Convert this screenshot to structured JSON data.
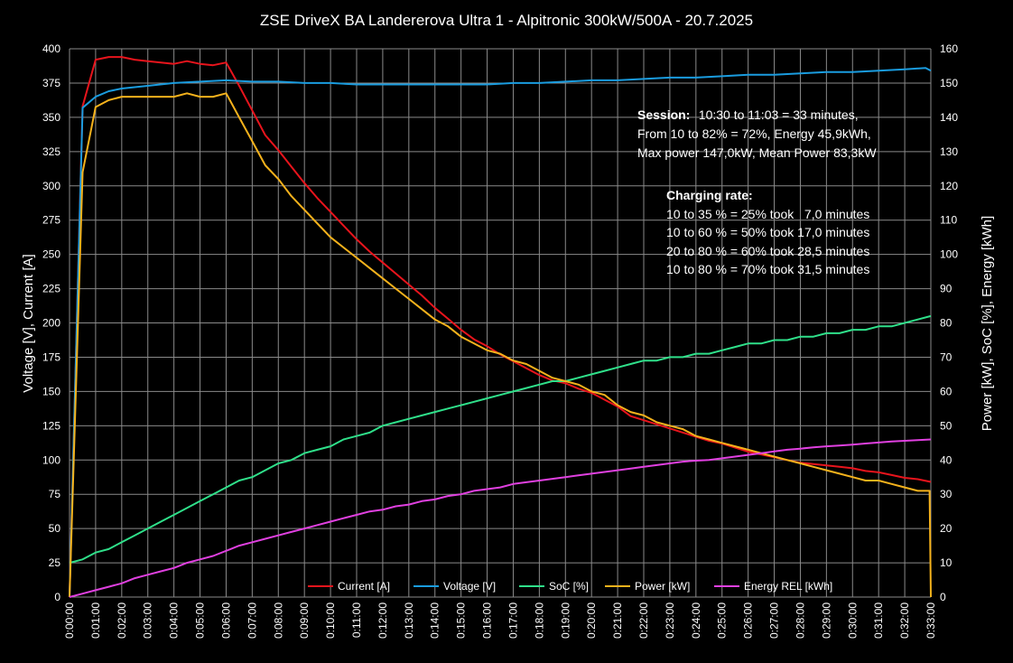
{
  "chart_data": {
    "type": "line",
    "title": "ZSE DriveX BA Landererova Ultra 1 - Alpitronic 300kW/500A - 20.7.2025",
    "ylabel_left": "Voltage [V], Current [A]",
    "ylabel_right": "Power [kW], SoC [%], Energy [kWh]",
    "xlabel": "",
    "y_left_range": [
      0,
      400
    ],
    "y_right_range": [
      0,
      160
    ],
    "y_left_ticks": [
      "0",
      "25",
      "50",
      "75",
      "100",
      "125",
      "150",
      "175",
      "200",
      "225",
      "250",
      "275",
      "300",
      "325",
      "350",
      "375",
      "400"
    ],
    "y_right_ticks": [
      "0",
      "10",
      "20",
      "30",
      "40",
      "50",
      "60",
      "70",
      "80",
      "90",
      "100",
      "110",
      "120",
      "130",
      "140",
      "150",
      "160"
    ],
    "x_range_minutes": [
      0,
      33
    ],
    "x_ticks": [
      "0:00:00",
      "0:01:00",
      "0:02:00",
      "0:03:00",
      "0:04:00",
      "0:05:00",
      "0:06:00",
      "0:07:00",
      "0:08:00",
      "0:09:00",
      "0:10:00",
      "0:11:00",
      "0:12:00",
      "0:13:00",
      "0:14:00",
      "0:15:00",
      "0:16:00",
      "0:17:00",
      "0:18:00",
      "0:19:00",
      "0:20:00",
      "0:21:00",
      "0:22:00",
      "0:23:00",
      "0:24:00",
      "0:25:00",
      "0:26:00",
      "0:27:00",
      "0:28:00",
      "0:29:00",
      "0:30:00",
      "0:31:00",
      "0:32:00",
      "0:33:00"
    ],
    "grid": true,
    "legend_position": "bottom",
    "series": [
      {
        "name": "Current [A]",
        "axis": "left",
        "color": "#e8141c",
        "x": [
          0,
          0.5,
          1,
          1.5,
          2,
          2.5,
          3,
          3.5,
          4,
          4.5,
          5,
          5.5,
          6,
          6.5,
          7,
          7.5,
          8,
          8.5,
          9,
          9.5,
          10,
          10.5,
          11,
          11.5,
          12,
          12.5,
          13,
          13.5,
          14,
          14.5,
          15,
          15.5,
          16,
          16.5,
          17,
          17.5,
          18,
          18.5,
          19,
          19.5,
          20,
          20.5,
          21,
          21.5,
          22,
          22.5,
          23,
          23.5,
          24,
          24.5,
          25,
          25.5,
          26,
          26.5,
          27,
          27.5,
          28,
          28.5,
          29,
          29.5,
          30,
          30.5,
          31,
          31.5,
          32,
          32.5,
          33
        ],
        "values": [
          0,
          358,
          392,
          394,
          394,
          392,
          391,
          390,
          389,
          391,
          389,
          388,
          390,
          373,
          355,
          337,
          326,
          314,
          302,
          291,
          281,
          271,
          261,
          252,
          244,
          236,
          228,
          220,
          211,
          203,
          195,
          188,
          183,
          177,
          172,
          167,
          162,
          158,
          156,
          152,
          149,
          144,
          139,
          132,
          129,
          126,
          123,
          120,
          117,
          114,
          112,
          109,
          106,
          104,
          102,
          100,
          98,
          97,
          96,
          95,
          94,
          92,
          91,
          89,
          87,
          86,
          84
        ]
      },
      {
        "name": "Voltage [V]",
        "axis": "left",
        "color": "#1a9cdf",
        "x": [
          0,
          0.5,
          1,
          1.5,
          2,
          3,
          4,
          5,
          6,
          7,
          8,
          9,
          10,
          11,
          12,
          13,
          14,
          15,
          16,
          17,
          18,
          19,
          20,
          21,
          22,
          23,
          24,
          25,
          26,
          27,
          28,
          29,
          30,
          31,
          32,
          32.8,
          33
        ],
        "values": [
          0,
          357,
          365,
          369,
          371,
          373,
          375,
          376,
          377,
          376,
          376,
          375,
          375,
          374,
          374,
          374,
          374,
          374,
          374,
          375,
          375,
          376,
          377,
          377,
          378,
          379,
          379,
          380,
          381,
          381,
          382,
          383,
          383,
          384,
          385,
          386,
          384
        ]
      },
      {
        "name": "SoC [%]",
        "axis": "right",
        "color": "#2fe08a",
        "x": [
          0,
          0.5,
          1,
          1.5,
          2,
          2.5,
          3,
          3.5,
          4,
          4.5,
          5,
          5.5,
          6,
          6.5,
          7,
          7.5,
          8,
          8.5,
          9,
          9.5,
          10,
          10.5,
          11,
          11.5,
          12,
          12.5,
          13,
          13.5,
          14,
          14.5,
          15,
          15.5,
          16,
          16.5,
          17,
          17.5,
          18,
          18.5,
          19,
          19.5,
          20,
          20.5,
          21,
          21.5,
          22,
          22.5,
          23,
          23.5,
          24,
          24.5,
          25,
          25.5,
          26,
          26.5,
          27,
          27.5,
          28,
          28.5,
          29,
          29.5,
          30,
          30.5,
          31,
          31.5,
          32,
          32.5,
          33
        ],
        "values": [
          10,
          11,
          13,
          14,
          16,
          18,
          20,
          22,
          24,
          26,
          28,
          30,
          32,
          34,
          35,
          37,
          39,
          40,
          42,
          43,
          44,
          46,
          47,
          48,
          50,
          51,
          52,
          53,
          54,
          55,
          56,
          57,
          58,
          59,
          60,
          61,
          62,
          63,
          63,
          64,
          65,
          66,
          67,
          68,
          69,
          69,
          70,
          70,
          71,
          71,
          72,
          73,
          74,
          74,
          75,
          75,
          76,
          76,
          77,
          77,
          78,
          78,
          79,
          79,
          80,
          81,
          82
        ]
      },
      {
        "name": "Power [kW]",
        "axis": "right",
        "color": "#f5b21c",
        "x": [
          0,
          0.5,
          1,
          1.5,
          2,
          2.5,
          3,
          3.5,
          4,
          4.5,
          5,
          5.5,
          6,
          6.5,
          7,
          7.5,
          8,
          8.5,
          9,
          9.5,
          10,
          10.5,
          11,
          11.5,
          12,
          12.5,
          13,
          13.5,
          14,
          14.5,
          15,
          15.5,
          16,
          16.5,
          17,
          17.5,
          18,
          18.5,
          19,
          19.5,
          20,
          20.5,
          21,
          21.5,
          22,
          22.5,
          23,
          23.5,
          24,
          24.5,
          25,
          25.5,
          26,
          26.5,
          27,
          27.5,
          28,
          28.5,
          29,
          29.5,
          30,
          30.5,
          31,
          31.5,
          32,
          32.5,
          32.95,
          33
        ],
        "values": [
          0,
          124,
          143,
          145,
          146,
          146,
          146,
          146,
          146,
          147,
          146,
          146,
          147,
          140,
          133,
          126,
          122,
          117,
          113,
          109,
          105,
          102,
          99,
          96,
          93,
          90,
          87,
          84,
          81,
          79,
          76,
          74,
          72,
          71,
          69,
          68,
          66,
          64,
          63,
          62,
          60,
          59,
          56,
          54,
          53,
          51,
          50,
          49,
          47,
          46,
          45,
          44,
          43,
          42,
          41,
          40,
          39,
          38,
          37,
          36,
          35,
          34,
          34,
          33,
          32,
          31,
          31,
          0
        ]
      },
      {
        "name": "Energy REL [kWh]",
        "axis": "right",
        "color": "#e040e0",
        "x": [
          0,
          0.5,
          1,
          1.5,
          2,
          2.5,
          3,
          3.5,
          4,
          4.5,
          5,
          5.5,
          6,
          6.5,
          7,
          7.5,
          8,
          8.5,
          9,
          9.5,
          10,
          10.5,
          11,
          11.5,
          12,
          12.5,
          13,
          13.5,
          14,
          14.5,
          15,
          15.5,
          16,
          16.5,
          17,
          17.5,
          18,
          18.5,
          19,
          19.5,
          20,
          20.5,
          21,
          21.5,
          22,
          22.5,
          23,
          23.5,
          24,
          24.5,
          25,
          25.5,
          26,
          26.5,
          27,
          27.5,
          28,
          28.5,
          29,
          29.5,
          30,
          30.5,
          31,
          31.5,
          32,
          32.5,
          33
        ],
        "values": [
          0,
          1,
          2,
          3,
          4,
          5.5,
          6.5,
          7.5,
          8.5,
          10,
          11,
          12,
          13.5,
          15,
          16,
          17,
          18,
          19,
          20,
          21,
          22,
          23,
          24,
          25,
          25.5,
          26.5,
          27,
          28,
          28.5,
          29.5,
          30,
          31,
          31.5,
          32,
          33,
          33.5,
          34,
          34.5,
          35,
          35.5,
          36,
          36.5,
          37,
          37.5,
          38,
          38.5,
          39,
          39.5,
          39.8,
          40,
          40.5,
          41,
          41.5,
          42,
          42.5,
          43,
          43.3,
          43.7,
          44,
          44.2,
          44.5,
          44.8,
          45.1,
          45.4,
          45.6,
          45.8,
          46
        ]
      }
    ],
    "annotations": {
      "session_label": "Session:",
      "session_line1": "  10:30 to 11:03 = 33 minutes,",
      "session_line2": "From 10 to 82% = 72%, Energy 45,9kWh,",
      "session_line3": "Max power 147,0kW, Mean Power 83,3kW",
      "rate_label": "Charging rate:",
      "rate_lines": [
        "10 to 35 % = 25% took   7,0 minutes",
        "10 to 60 % = 50% took 17,0 minutes",
        "20 to 80 % = 60% took 28,5 minutes",
        "10 to 80 % = 70% took 31,5 minutes"
      ]
    }
  }
}
